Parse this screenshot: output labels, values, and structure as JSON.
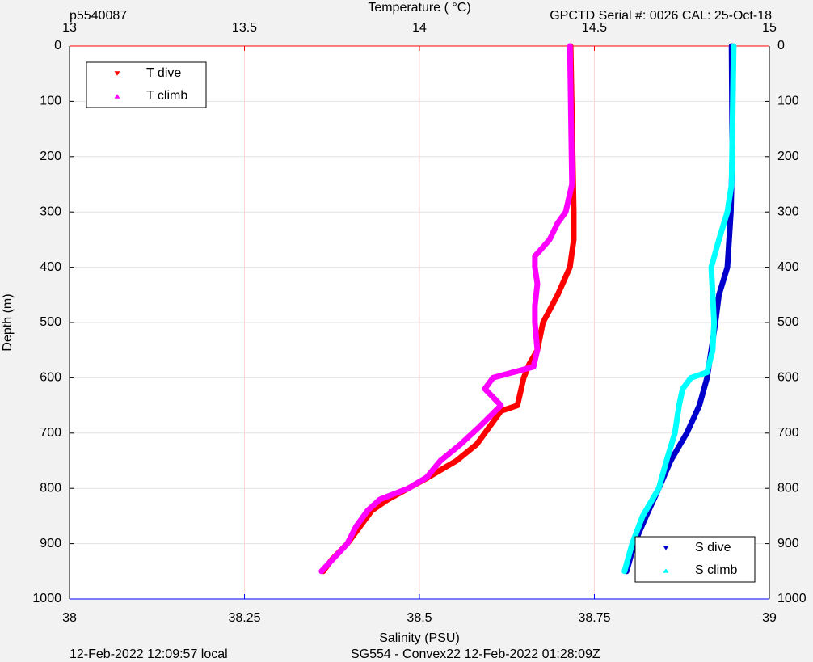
{
  "chart_data": {
    "type": "scatter",
    "header_left": "p5540087",
    "header_right": "GPCTD Serial #: 0026 CAL: 25-Oct-18",
    "footer_left": "12-Feb-2022 12:09:57 local",
    "footer_right": "SG554 - Convex22 12-Feb-2022 01:28:09Z",
    "ylabel": "Depth (m)",
    "ylim": [
      0,
      1000
    ],
    "yticks": [
      0,
      100,
      200,
      300,
      400,
      500,
      600,
      700,
      800,
      900,
      1000
    ],
    "grid": true,
    "temperature_axis": {
      "label": "Temperature (   °C)",
      "position": "top",
      "color": "#ff0000",
      "lim": [
        13,
        15
      ],
      "ticks": [
        13,
        13.5,
        14,
        14.5,
        15
      ],
      "grid_color": "#ffd6d6"
    },
    "salinity_axis": {
      "label": "Salinity (PSU)",
      "position": "bottom",
      "color": "#0000ff",
      "lim": [
        38,
        39
      ],
      "ticks": [
        38,
        38.25,
        38.5,
        38.75,
        39
      ]
    },
    "series": [
      {
        "name": "T dive",
        "color": "#ff0000",
        "axis": "temperature",
        "marker": "down",
        "legend": "upper left",
        "x": [
          14.432,
          14.441,
          14.441,
          14.43,
          14.395,
          14.353,
          14.337,
          14.314,
          14.298,
          14.28,
          14.233,
          14.187,
          14.164,
          14.106,
          14.025,
          13.968,
          13.91,
          13.864,
          13.829,
          13.794,
          13.748,
          13.725
        ],
        "depth": [
          0,
          300,
          350,
          400,
          450,
          500,
          550,
          575,
          600,
          650,
          660,
          700,
          720,
          750,
          780,
          800,
          820,
          840,
          870,
          900,
          930,
          950
        ]
      },
      {
        "name": "T climb",
        "color": "#ff00ff",
        "axis": "temperature",
        "marker": "up",
        "legend": "upper left",
        "x": [
          14.43,
          14.436,
          14.418,
          14.395,
          14.372,
          14.33,
          14.33,
          14.337,
          14.33,
          14.33,
          14.337,
          14.326,
          14.21,
          14.187,
          14.233,
          14.169,
          14.152,
          14.118,
          14.06,
          14.021,
          13.968,
          13.887,
          13.852,
          13.818,
          13.794,
          13.72
        ],
        "depth": [
          0,
          250,
          300,
          320,
          350,
          380,
          400,
          430,
          470,
          500,
          550,
          580,
          600,
          620,
          650,
          690,
          700,
          720,
          750,
          780,
          800,
          820,
          840,
          870,
          900,
          950
        ]
      },
      {
        "name": "S dive",
        "color": "#0000cd",
        "axis": "salinity",
        "marker": "down",
        "legend": "lower right",
        "x": [
          38.946,
          38.947,
          38.945,
          38.94,
          38.928,
          38.923,
          38.917,
          38.911,
          38.9,
          38.882,
          38.859,
          38.842,
          38.824,
          38.807,
          38.796
        ],
        "depth": [
          0,
          200,
          300,
          400,
          450,
          500,
          550,
          600,
          650,
          700,
          750,
          800,
          850,
          900,
          950
        ]
      },
      {
        "name": "S climb",
        "color": "#00ffff",
        "axis": "salinity",
        "marker": "up",
        "legend": "lower right",
        "x": [
          38.949,
          38.946,
          38.94,
          38.928,
          38.917,
          38.919,
          38.921,
          38.919,
          38.911,
          38.888,
          38.876,
          38.871,
          38.865,
          38.853,
          38.842,
          38.819,
          38.804,
          38.793
        ],
        "depth": [
          0,
          250,
          300,
          350,
          400,
          450,
          500,
          550,
          590,
          600,
          620,
          650,
          700,
          750,
          800,
          850,
          900,
          950
        ]
      }
    ]
  }
}
